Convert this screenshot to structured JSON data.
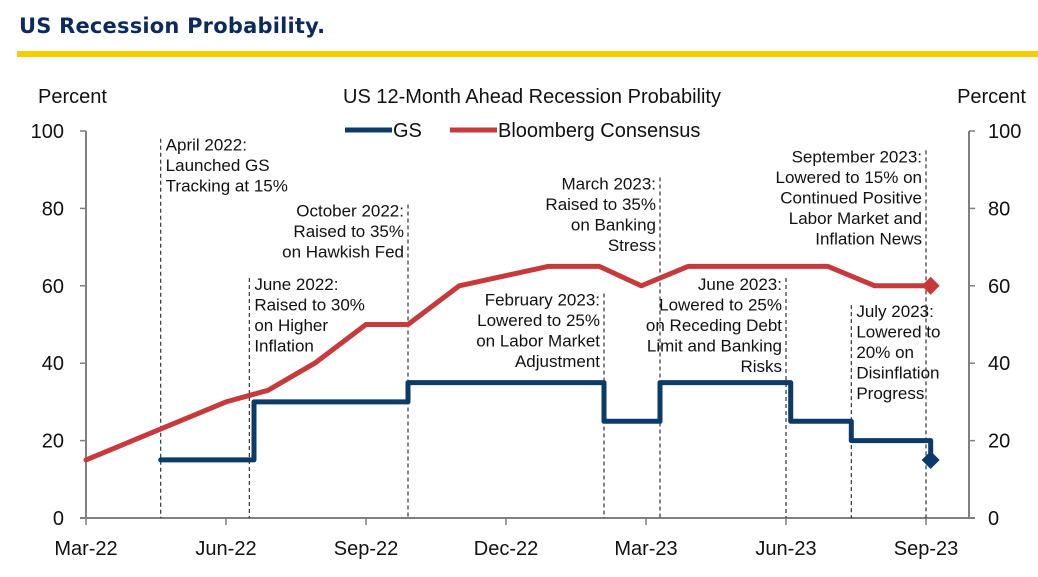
{
  "header": {
    "title": "US Recession Probability.",
    "accent_color": "#f7cc00",
    "title_color": "#0d2a5e"
  },
  "chart_data": {
    "type": "line",
    "title": "US 12-Month Ahead Recession Probability",
    "ylabel_left": "Percent",
    "ylabel_right": "Percent",
    "xlabel": "",
    "ylim": [
      0,
      100
    ],
    "yticks": [
      0,
      20,
      40,
      60,
      80,
      100
    ],
    "xlim_months_from_mar22": [
      0,
      19.3
    ],
    "xticks": [
      {
        "label": "Mar-22",
        "m": 0
      },
      {
        "label": "Jun-22",
        "m": 3
      },
      {
        "label": "Sep-22",
        "m": 6
      },
      {
        "label": "Dec-22",
        "m": 9
      },
      {
        "label": "Mar-23",
        "m": 12
      },
      {
        "label": "Jun-23",
        "m": 15
      },
      {
        "label": "Sep-23",
        "m": 18
      }
    ],
    "grid": false,
    "legend": {
      "placement": "top-center"
    },
    "series": [
      {
        "name": "GS",
        "color": "#0b3a6b",
        "step": true,
        "points": [
          [
            1.6,
            15
          ],
          [
            3.6,
            15
          ],
          [
            3.6,
            30
          ],
          [
            6.9,
            30
          ],
          [
            6.9,
            35
          ],
          [
            11.1,
            35
          ],
          [
            11.1,
            25
          ],
          [
            12.3,
            25
          ],
          [
            12.3,
            35
          ],
          [
            15.1,
            35
          ],
          [
            15.1,
            25
          ],
          [
            16.4,
            25
          ],
          [
            16.4,
            20
          ],
          [
            18.1,
            20
          ],
          [
            18.1,
            15
          ]
        ],
        "end_marker": {
          "m": 18.1,
          "value": 15,
          "shape": "diamond"
        }
      },
      {
        "name": "Bloomberg Consensus",
        "color": "#c8393b",
        "step": false,
        "points": [
          [
            0,
            15
          ],
          [
            1.7,
            23.5
          ],
          [
            3.0,
            30
          ],
          [
            3.9,
            33
          ],
          [
            4.9,
            40
          ],
          [
            6.0,
            50
          ],
          [
            6.9,
            50
          ],
          [
            8.0,
            60
          ],
          [
            9.9,
            65
          ],
          [
            11.0,
            65
          ],
          [
            11.9,
            60
          ],
          [
            12.9,
            65
          ],
          [
            15.9,
            65
          ],
          [
            16.9,
            60
          ],
          [
            18.1,
            60
          ]
        ],
        "end_marker": {
          "m": 18.1,
          "value": 60,
          "shape": "diamond"
        }
      }
    ],
    "annotations": [
      {
        "lines": [
          "April 2022:",
          "Launched GS",
          "Tracking at 15%"
        ],
        "line_m": 1.6,
        "align": "left",
        "top_value": 98
      },
      {
        "lines": [
          "June 2022:",
          "Raised to 30%",
          "on Higher",
          "Inflation"
        ],
        "line_m": 3.5,
        "align": "left",
        "top_value": 62
      },
      {
        "lines": [
          "October 2022:",
          "Raised to 35%",
          "on Hawkish Fed"
        ],
        "line_m": 6.9,
        "align": "right",
        "top_value": 81
      },
      {
        "lines": [
          "February 2023:",
          "Lowered to 25%",
          "on Labor Market",
          "Adjustment"
        ],
        "line_m": 11.1,
        "align": "right",
        "top_value": 58
      },
      {
        "lines": [
          "March 2023:",
          "Raised to 35%",
          "on Banking",
          "Stress"
        ],
        "line_m": 12.3,
        "align": "right",
        "top_value": 88
      },
      {
        "lines": [
          "June 2023:",
          "Lowered to 25%",
          "on Receding Debt",
          "Limit and Banking",
          "Risks"
        ],
        "line_m": 15.0,
        "align": "right",
        "top_value": 62
      },
      {
        "lines": [
          "July 2023:",
          "Lowered to",
          "20% on",
          "Disinflation",
          "Progress"
        ],
        "line_m": 16.4,
        "align": "left",
        "top_value": 55
      },
      {
        "lines": [
          "September 2023:",
          "Lowered to 15% on",
          "Continued Positive",
          "Labor Market and",
          "Inflation News"
        ],
        "line_m": 18.0,
        "align": "right",
        "top_value": 95
      }
    ]
  }
}
